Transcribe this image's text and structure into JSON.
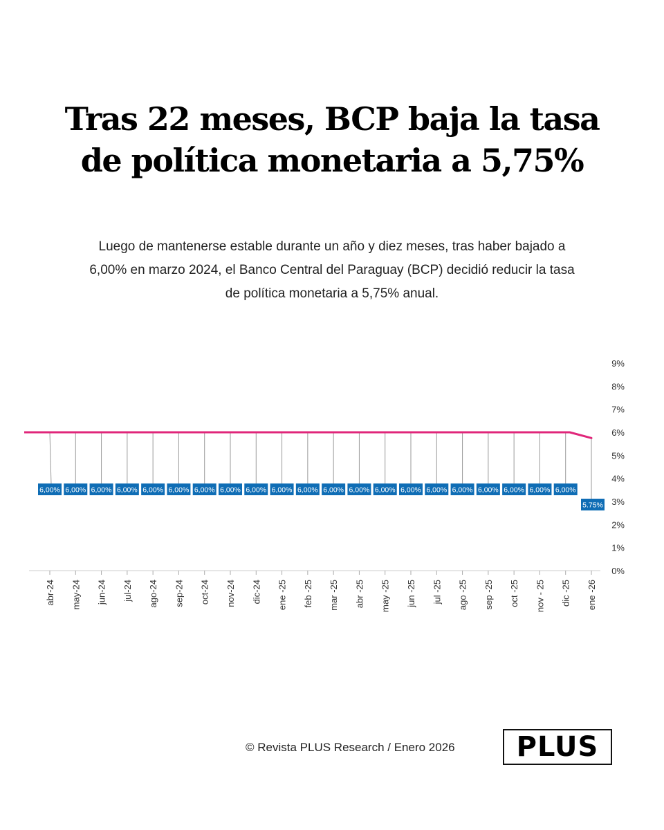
{
  "title": "Tras 22 meses, BCP baja la tasa de política monetaria a 5,75%",
  "subtitle": "Luego de mantenerse estable durante un año y diez meses, tras haber bajado a 6,00% en marzo 2024, el Banco Central del Paraguay (BCP) decidió reducir la tasa de política monetaria a 5,75% anual.",
  "footer": {
    "credit": "© Revista PLUS Research / Enero 2026",
    "logo": "PLUS"
  },
  "colors": {
    "line": "#e0267a",
    "label_bg": "#0f6db5",
    "label_text": "#ffffff"
  },
  "chart_data": {
    "type": "line",
    "categories": [
      "abr-24",
      "may-24",
      "jun-24",
      "jul-24",
      "ago-24",
      "sep-24",
      "oct-24",
      "nov-24",
      "dic-24",
      "ene -25",
      "feb -25",
      "mar -25",
      "abr -25",
      "may -25",
      "jun -25",
      "jul -25",
      "ago -25",
      "sep -25",
      "oct -25",
      "nov - 25",
      "dic -25",
      "ene -26"
    ],
    "values": [
      6,
      6,
      6,
      6,
      6,
      6,
      6,
      6,
      6,
      6,
      6,
      6,
      6,
      6,
      6,
      6,
      6,
      6,
      6,
      6,
      6,
      5.75
    ],
    "data_labels": [
      "6,00%",
      "6,00%",
      "6,00%",
      "6,00%",
      "6,00%",
      "6,00%",
      "6,00%",
      "6,00%",
      "6,00%",
      "6,00%",
      "6,00%",
      "6,00%",
      "6,00%",
      "6,00%",
      "6,00%",
      "6,00%",
      "6,00%",
      "6,00%",
      "6,00%",
      "6,00%",
      "6,00%",
      "5.75%"
    ],
    "y_ticks": [
      "0%",
      "1%",
      "2%",
      "3%",
      "4%",
      "5%",
      "6%",
      "7%",
      "8%",
      "9%"
    ],
    "ylim": [
      0,
      9
    ],
    "y_axis_position": "right",
    "grid": false
  }
}
